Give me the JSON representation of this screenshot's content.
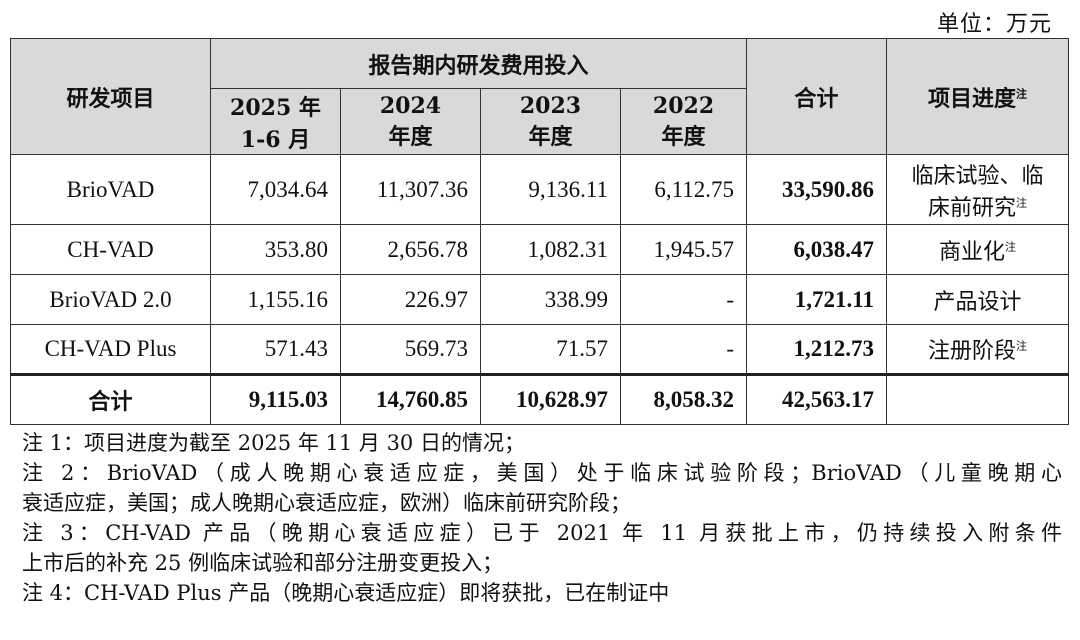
{
  "unit_label": "单位：万元",
  "header": {
    "project": "研发项目",
    "period_group": "报告期内研发费用投入",
    "periods": [
      {
        "line1": "2025 年",
        "line2": "1-6 月"
      },
      {
        "line1": "2024",
        "line2": "年度"
      },
      {
        "line1": "2023",
        "line2": "年度"
      },
      {
        "line1": "2022",
        "line2": "年度"
      }
    ],
    "total": "合计",
    "progress": "项目进度",
    "progress_sup": "注"
  },
  "rows": [
    {
      "name": "BrioVAD",
      "values": [
        "7,034.64",
        "11,307.36",
        "9,136.11",
        "6,112.75"
      ],
      "total": "33,590.86",
      "progress_line1": "临床试验、临",
      "progress_line2": "床前研究",
      "progress_sup": "注"
    },
    {
      "name": "CH-VAD",
      "values": [
        "353.80",
        "2,656.78",
        "1,082.31",
        "1,945.57"
      ],
      "total": "6,038.47",
      "progress": "商业化",
      "progress_sup": "注"
    },
    {
      "name": "BrioVAD 2.0",
      "values": [
        "1,155.16",
        "226.97",
        "338.99",
        "-"
      ],
      "total": "1,721.11",
      "progress": "产品设计",
      "progress_sup": ""
    },
    {
      "name": "CH-VAD Plus",
      "values": [
        "571.43",
        "569.73",
        "71.57",
        "-"
      ],
      "total": "1,212.73",
      "progress": "注册阶段",
      "progress_sup": "注"
    }
  ],
  "total_row": {
    "label": "合计",
    "values": [
      "9,115.03",
      "14,760.85",
      "10,628.97",
      "8,058.32"
    ],
    "total": "42,563.17",
    "progress": ""
  },
  "notes": [
    "注 1：项目进度为截至 2025 年 11 月 30 日的情况；",
    "注 2：BrioVAD（成人晚期心衰适应症，美国）处于临床试验阶段；BrioVAD（儿童晚期心",
    "衰适应症，美国；成人晚期心衰适应症，欧洲）临床前研究阶段；",
    "注 3：CH-VAD 产品（晚期心衰适应症）已于 2021 年 11 月获批上市，仍持续投入附条件",
    "上市后的补充 25 例临床试验和部分注册变更投入；",
    "注 4：CH-VAD Plus 产品（晚期心衰适应症）即将获批，已在制证中"
  ]
}
